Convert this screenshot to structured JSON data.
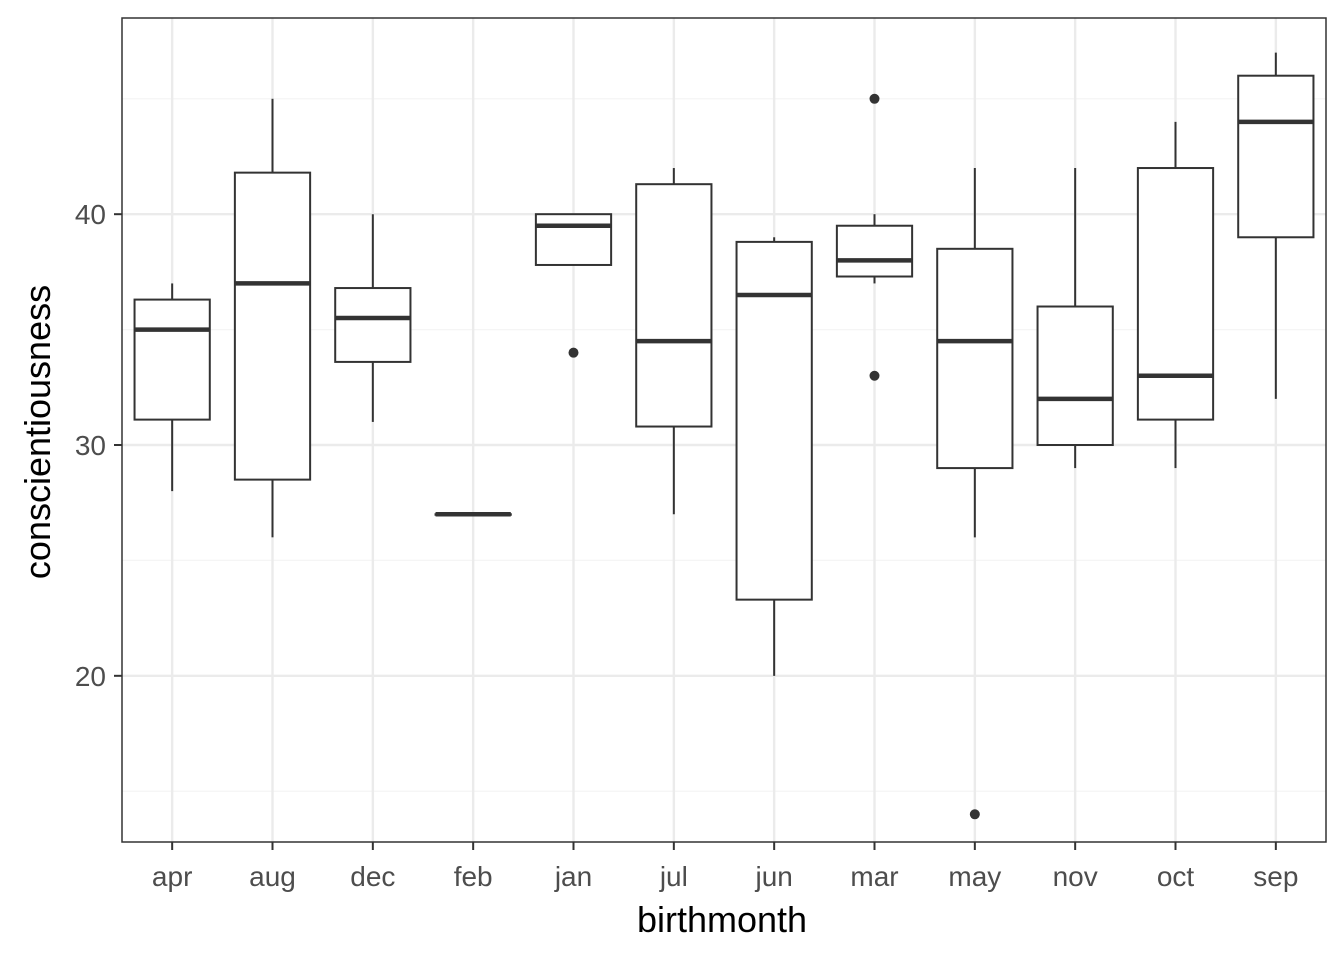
{
  "chart_data": {
    "type": "boxplot",
    "title": "",
    "xlabel": "birthmonth",
    "ylabel": "conscientiousness",
    "ylim": [
      12.8,
      48.5
    ],
    "y_major_ticks": [
      20,
      30,
      40
    ],
    "y_minor_ticks": [
      15,
      25,
      35,
      45
    ],
    "y_tick_labels": [
      "20",
      "30",
      "40"
    ],
    "grid": true,
    "categories": [
      "apr",
      "aug",
      "dec",
      "feb",
      "jan",
      "jul",
      "jun",
      "mar",
      "may",
      "nov",
      "oct",
      "sep"
    ],
    "boxes": [
      {
        "category": "apr",
        "whisker_low": 28,
        "q1": 31.1,
        "median": 35,
        "q3": 36.3,
        "whisker_high": 37,
        "outliers": []
      },
      {
        "category": "aug",
        "whisker_low": 26,
        "q1": 28.5,
        "median": 37,
        "q3": 41.8,
        "whisker_high": 45,
        "outliers": []
      },
      {
        "category": "dec",
        "whisker_low": 31,
        "q1": 33.6,
        "median": 35.5,
        "q3": 36.8,
        "whisker_high": 40,
        "outliers": []
      },
      {
        "category": "feb",
        "whisker_low": 27,
        "q1": 27,
        "median": 27,
        "q3": 27,
        "whisker_high": 27,
        "outliers": []
      },
      {
        "category": "jan",
        "whisker_low": 37.8,
        "q1": 37.8,
        "median": 39.5,
        "q3": 40,
        "whisker_high": 40,
        "outliers": [
          34
        ]
      },
      {
        "category": "jul",
        "whisker_low": 27,
        "q1": 30.8,
        "median": 34.5,
        "q3": 41.3,
        "whisker_high": 42,
        "outliers": []
      },
      {
        "category": "jun",
        "whisker_low": 20,
        "q1": 23.3,
        "median": 36.5,
        "q3": 38.8,
        "whisker_high": 39,
        "outliers": []
      },
      {
        "category": "mar",
        "whisker_low": 37,
        "q1": 37.3,
        "median": 38,
        "q3": 39.5,
        "whisker_high": 40,
        "outliers": [
          45,
          33
        ]
      },
      {
        "category": "may",
        "whisker_low": 26,
        "q1": 29,
        "median": 34.5,
        "q3": 38.5,
        "whisker_high": 42,
        "outliers": [
          14
        ]
      },
      {
        "category": "nov",
        "whisker_low": 29,
        "q1": 30,
        "median": 32,
        "q3": 36,
        "whisker_high": 42,
        "outliers": []
      },
      {
        "category": "oct",
        "whisker_low": 29,
        "q1": 31.1,
        "median": 33,
        "q3": 42,
        "whisker_high": 44,
        "outliers": []
      },
      {
        "category": "sep",
        "whisker_low": 32,
        "q1": 39,
        "median": 44,
        "q3": 46,
        "whisker_high": 47,
        "outliers": []
      }
    ],
    "colors": {
      "panel_border": "#333333",
      "grid_major": "#ebebeb",
      "grid_minor": "#f5f5f5",
      "box_stroke": "#333333",
      "tick_text": "#4d4d4d",
      "title_text": "#000000"
    }
  }
}
